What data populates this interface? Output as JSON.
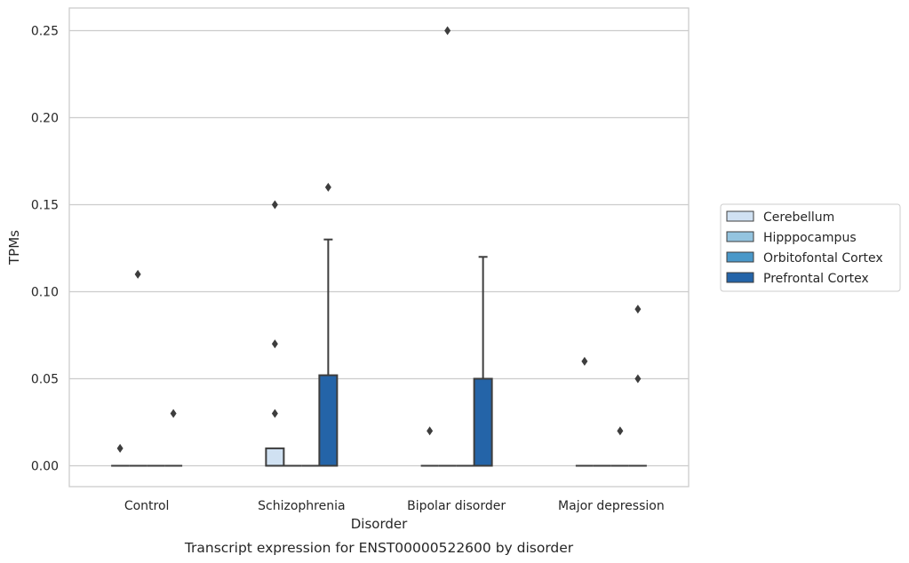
{
  "chart_data": {
    "type": "box",
    "title": "Transcript expression for ENST00000522600 by disorder",
    "xlabel": "Disorder",
    "ylabel": "TPMs",
    "ylim": [
      -0.012,
      0.263
    ],
    "yticks": [
      0.0,
      0.05,
      0.1,
      0.15,
      0.2,
      0.25
    ],
    "ytick_labels": [
      "0.00",
      "0.05",
      "0.10",
      "0.15",
      "0.20",
      "0.25"
    ],
    "categories": [
      "Control",
      "Schizophrenia",
      "Bipolar disorder",
      "Major depression"
    ],
    "grid": "horizontal",
    "legend_position": "right",
    "series": [
      {
        "name": "Cerebellum",
        "color": "#d0e1f2",
        "boxes": [
          {
            "q1": 0,
            "median": 0,
            "q3": 0,
            "whisker_low": 0,
            "whisker_high": 0,
            "outliers": [
              0.01
            ]
          },
          {
            "q1": 0,
            "median": 0,
            "q3": 0.01,
            "whisker_low": 0,
            "whisker_high": 0.01,
            "outliers": [
              0.03,
              0.07,
              0.15
            ]
          },
          {
            "q1": 0,
            "median": 0,
            "q3": 0,
            "whisker_low": 0,
            "whisker_high": 0,
            "outliers": [
              0.02
            ]
          },
          {
            "q1": 0,
            "median": 0,
            "q3": 0,
            "whisker_low": 0,
            "whisker_high": 0,
            "outliers": [
              0.06
            ]
          }
        ]
      },
      {
        "name": "Hipppocampus",
        "color": "#94c4df",
        "boxes": [
          {
            "q1": 0,
            "median": 0,
            "q3": 0,
            "whisker_low": 0,
            "whisker_high": 0,
            "outliers": [
              0.11
            ]
          },
          {
            "q1": 0,
            "median": 0,
            "q3": 0,
            "whisker_low": 0,
            "whisker_high": 0,
            "outliers": []
          },
          {
            "q1": 0,
            "median": 0,
            "q3": 0,
            "whisker_low": 0,
            "whisker_high": 0,
            "outliers": [
              0.25
            ]
          },
          {
            "q1": 0,
            "median": 0,
            "q3": 0,
            "whisker_low": 0,
            "whisker_high": 0,
            "outliers": []
          }
        ]
      },
      {
        "name": "Orbitofontal Cortex",
        "color": "#4a98c9",
        "boxes": [
          {
            "q1": 0,
            "median": 0,
            "q3": 0,
            "whisker_low": 0,
            "whisker_high": 0,
            "outliers": []
          },
          {
            "q1": 0,
            "median": 0,
            "q3": 0,
            "whisker_low": 0,
            "whisker_high": 0,
            "outliers": []
          },
          {
            "q1": 0,
            "median": 0,
            "q3": 0,
            "whisker_low": 0,
            "whisker_high": 0,
            "outliers": []
          },
          {
            "q1": 0,
            "median": 0,
            "q3": 0,
            "whisker_low": 0,
            "whisker_high": 0,
            "outliers": [
              0.02
            ]
          }
        ]
      },
      {
        "name": "Prefrontal Cortex",
        "color": "#2464a8",
        "boxes": [
          {
            "q1": 0,
            "median": 0,
            "q3": 0,
            "whisker_low": 0,
            "whisker_high": 0,
            "outliers": [
              0.03
            ]
          },
          {
            "q1": 0,
            "median": 0,
            "q3": 0.052,
            "whisker_low": 0,
            "whisker_high": 0.13,
            "outliers": [
              0.16
            ]
          },
          {
            "q1": 0,
            "median": 0,
            "q3": 0.05,
            "whisker_low": 0,
            "whisker_high": 0.12,
            "outliers": []
          },
          {
            "q1": 0,
            "median": 0,
            "q3": 0,
            "whisker_low": 0,
            "whisker_high": 0,
            "outliers": [
              0.05,
              0.09
            ]
          }
        ]
      }
    ]
  }
}
